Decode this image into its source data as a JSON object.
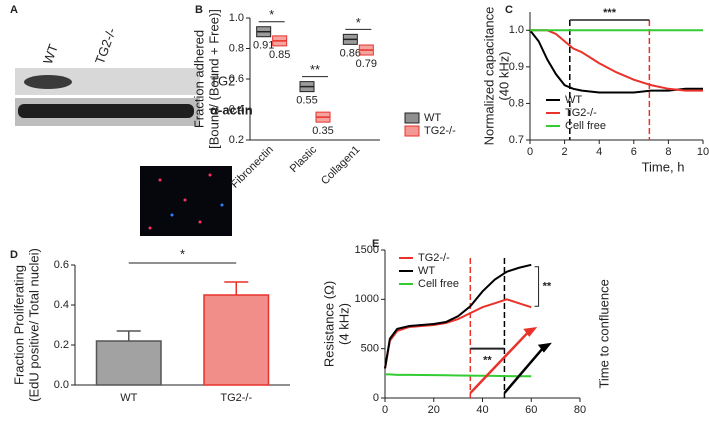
{
  "blot": {
    "label": "A",
    "lanes": [
      "WT",
      "TG2-/-"
    ],
    "bands": [
      "TG2",
      "α-actin"
    ]
  },
  "chart_data": [
    {
      "type": "box",
      "label": "B",
      "ylabel": [
        "Fraction adhered",
        "[Bound/ (Bound + Free)]"
      ],
      "categories": [
        "Fibronectin",
        "Plastic",
        "Collagen1"
      ],
      "series": [
        {
          "name": "WT",
          "color": "#222222",
          "values": [
            0.91,
            0.55,
            0.86
          ]
        },
        {
          "name": "TG2-/-",
          "color": "#e8322a",
          "values": [
            0.85,
            0.35,
            0.79
          ]
        }
      ],
      "significance": [
        "*",
        "**",
        "*"
      ],
      "ylim": [
        0.2,
        1.0
      ],
      "yticks": [
        0.2,
        0.4,
        0.6,
        0.8,
        {
          "value": 1.0,
          "label": "1.0"
        }
      ],
      "legend": "lower-right"
    },
    {
      "type": "line",
      "label": "C",
      "ylabel": [
        "Normalized capacitance",
        "(40 kHz)"
      ],
      "xlabel": "Time, h",
      "x": [
        0,
        0.5,
        1,
        1.5,
        2,
        2.5,
        3,
        4,
        5,
        6,
        7,
        8,
        9,
        10
      ],
      "series": [
        {
          "name": "WT",
          "color": "#000000",
          "values": [
            1.0,
            0.97,
            0.92,
            0.88,
            0.85,
            0.84,
            0.835,
            0.83,
            0.83,
            0.83,
            0.835,
            0.835,
            0.84,
            0.84
          ]
        },
        {
          "name": "TG2-/-",
          "color": "#e8322a",
          "values": [
            1.0,
            1.0,
            1.0,
            0.99,
            0.97,
            0.95,
            0.94,
            0.91,
            0.885,
            0.865,
            0.85,
            0.84,
            0.835,
            0.835
          ]
        },
        {
          "name": "Cell free",
          "color": "#33cc33",
          "values": [
            1.0,
            1.0,
            1.0,
            1.0,
            1.0,
            1.0,
            1.0,
            1.0,
            1.0,
            1.0,
            1.0,
            1.0,
            1.0,
            1.0
          ]
        }
      ],
      "vlines": [
        {
          "x": 2.3,
          "color": "#000000"
        },
        {
          "x": 6.9,
          "color": "#e8322a"
        }
      ],
      "annotations": [
        "***"
      ],
      "xlim": [
        0,
        10
      ],
      "xticks": [
        0,
        2,
        4,
        6,
        8,
        10
      ],
      "ylim": [
        0.7,
        1.05
      ],
      "yticks": [
        0.7,
        0.8,
        0.9,
        {
          "value": 1.0,
          "label": "1.0"
        }
      ],
      "legend": "lower-left"
    },
    {
      "type": "bar",
      "label": "D",
      "ylabel": [
        "Fraction Proliferating",
        "(EdU positive/ Total nuclei)"
      ],
      "categories": [
        "WT",
        "TG2-/-"
      ],
      "values": [
        0.22,
        0.45
      ],
      "errors": [
        0.05,
        0.065
      ],
      "colors": [
        "#555555",
        "#e8322a"
      ],
      "annotations": [
        "*"
      ],
      "ylim": [
        0,
        0.6
      ],
      "yticks": [
        {
          "value": 0,
          "label": "0.0"
        },
        0.2,
        0.4,
        0.6
      ]
    },
    {
      "type": "line",
      "label": "E",
      "ylabel": [
        "Resistance (Ω)",
        "(4 kHz)"
      ],
      "x": [
        0,
        2,
        5,
        10,
        15,
        20,
        25,
        30,
        35,
        40,
        45,
        50,
        55,
        60
      ],
      "series": [
        {
          "name": "TG2-/-",
          "color": "#e8322a",
          "values": [
            300,
            580,
            680,
            720,
            730,
            740,
            760,
            800,
            860,
            920,
            960,
            1000,
            960,
            920
          ]
        },
        {
          "name": "WT",
          "color": "#000000",
          "values": [
            300,
            600,
            700,
            730,
            740,
            750,
            770,
            830,
            930,
            1080,
            1200,
            1280,
            1320,
            1350
          ]
        },
        {
          "name": "Cell free",
          "color": "#33cc33",
          "values": [
            240,
            240,
            235,
            235,
            233,
            232,
            230,
            228,
            227,
            225,
            224,
            222,
            221,
            220
          ]
        }
      ],
      "vlines": [
        {
          "x": 35,
          "color": "#e8322a"
        },
        {
          "x": 49,
          "color": "#000000"
        }
      ],
      "annotations": [
        "**",
        "**",
        "Time to confluence"
      ],
      "xlim": [
        0,
        80
      ],
      "xticks": [
        0,
        20,
        40,
        60,
        80
      ],
      "ylim": [
        0,
        1500
      ],
      "yticks": [
        0,
        500,
        1000,
        1500
      ],
      "legend": "upper-left"
    }
  ]
}
